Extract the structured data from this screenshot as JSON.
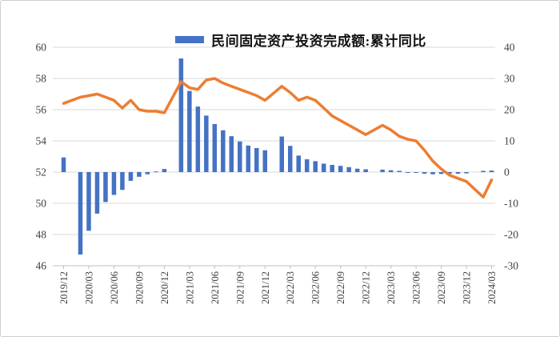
{
  "legend": {
    "label": "民间固定资产投资完成额:累计同比",
    "marker_color": "#4472C4"
  },
  "chart_data": {
    "type": "bar",
    "subtype": "combo-bar-line-dual-axis",
    "title": "",
    "xlabel": "",
    "ylabel_left": "",
    "ylabel_right": "",
    "grid": true,
    "legend_position": "top-center",
    "x": [
      "2019/12",
      "2020/02",
      "2020/03",
      "2020/04",
      "2020/05",
      "2020/06",
      "2020/07",
      "2020/08",
      "2020/09",
      "2020/10",
      "2020/11",
      "2020/12",
      "2021/02",
      "2021/03",
      "2021/04",
      "2021/05",
      "2021/06",
      "2021/07",
      "2021/08",
      "2021/09",
      "2021/10",
      "2021/11",
      "2021/12",
      "2022/02",
      "2022/03",
      "2022/04",
      "2022/05",
      "2022/06",
      "2022/07",
      "2022/08",
      "2022/09",
      "2022/10",
      "2022/11",
      "2022/12",
      "2023/02",
      "2023/03",
      "2023/04",
      "2023/05",
      "2023/06",
      "2023/07",
      "2023/08",
      "2023/09",
      "2023/10",
      "2023/11",
      "2023/12",
      "2024/02",
      "2024/03"
    ],
    "series": [
      {
        "name": "民间固定资产投资完成额:累计同比",
        "type": "bar",
        "axis": "right",
        "color": "#4472C4",
        "in_legend": true,
        "values": [
          4.7,
          -26.4,
          -18.8,
          -13.3,
          -9.6,
          -7.3,
          -5.7,
          -2.8,
          -1.5,
          -0.7,
          0.2,
          1.0,
          36.4,
          26.0,
          21.0,
          18.1,
          15.4,
          13.4,
          11.5,
          9.8,
          8.5,
          7.7,
          7.0,
          11.4,
          8.4,
          5.3,
          4.1,
          3.5,
          2.7,
          2.3,
          2.0,
          1.6,
          1.1,
          0.9,
          0.8,
          0.6,
          0.4,
          -0.1,
          -0.2,
          -0.5,
          -0.7,
          -0.6,
          -0.5,
          -0.5,
          -0.4,
          0.4,
          0.5
        ]
      },
      {
        "name": "",
        "type": "line",
        "axis": "left",
        "color": "#ED7D31",
        "in_legend": false,
        "values": [
          56.4,
          56.8,
          56.9,
          57.0,
          56.8,
          56.6,
          56.1,
          56.6,
          56.0,
          55.9,
          55.9,
          55.8,
          57.8,
          57.4,
          57.3,
          57.9,
          58.0,
          57.7,
          57.5,
          57.3,
          57.1,
          56.9,
          56.6,
          57.5,
          57.1,
          56.6,
          56.8,
          56.6,
          56.1,
          55.6,
          55.3,
          55.0,
          54.7,
          54.4,
          55.0,
          54.7,
          54.3,
          54.1,
          54.0,
          53.4,
          52.7,
          52.2,
          51.8,
          51.6,
          51.4,
          50.4,
          51.5
        ]
      }
    ],
    "left_axis": {
      "min": 46,
      "max": 60,
      "tick_step": 2,
      "ticks": [
        60,
        58,
        56,
        54,
        52,
        50,
        48,
        46
      ]
    },
    "right_axis": {
      "min": -30,
      "max": 40,
      "tick_step": 10,
      "ticks": [
        40,
        30,
        20,
        10,
        0,
        -10,
        -20,
        -30
      ]
    },
    "x_tick_labels": [
      "2019/12",
      "2020/03",
      "2020/06",
      "2020/09",
      "2020/12",
      "2021/03",
      "2021/06",
      "2021/09",
      "2021/12",
      "2022/03",
      "2022/06",
      "2022/09",
      "2022/12",
      "2023/03",
      "2023/06",
      "2023/09",
      "2023/12",
      "2024/03"
    ]
  }
}
